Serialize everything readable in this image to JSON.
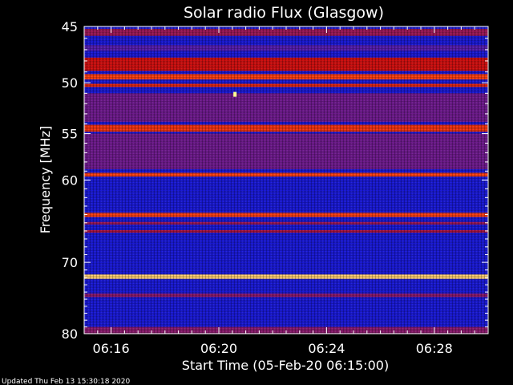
{
  "chart_data": {
    "type": "heatmap",
    "title": "Solar radio Flux (Glasgow)",
    "xlabel": "Start Time (05-Feb-20 06:15:00)",
    "ylabel": "Frequency [MHz]",
    "x_range_minutes_after_0615": [
      0,
      15
    ],
    "y_range_mhz": [
      45,
      80
    ],
    "y_ticks": [
      {
        "value": 45,
        "label": "45"
      },
      {
        "value": 50,
        "label": "50"
      },
      {
        "value": 55,
        "label": "55"
      },
      {
        "value": 60,
        "label": "60"
      },
      {
        "value": 70,
        "label": "70"
      },
      {
        "value": 80,
        "label": "80"
      }
    ],
    "x_ticks": [
      {
        "value": 1,
        "label": "06:16"
      },
      {
        "value": 5,
        "label": "06:20"
      },
      {
        "value": 9,
        "label": "06:24"
      },
      {
        "value": 13,
        "label": "06:28"
      }
    ],
    "colormap": [
      "#0a0a7a",
      "#1f1ff0",
      "#8b1a6e",
      "#d21010",
      "#ff4010",
      "#ffff90"
    ],
    "background_color": "#1a1ad8",
    "bands": [
      {
        "from": 45.2,
        "to": 45.8,
        "intensity": 0.45
      },
      {
        "from": 46.6,
        "to": 47.1,
        "intensity": 0.3
      },
      {
        "from": 47.7,
        "to": 48.9,
        "intensity": 0.6
      },
      {
        "from": 49.2,
        "to": 49.7,
        "intensity": 0.8
      },
      {
        "from": 50.1,
        "to": 50.4,
        "intensity": 0.7
      },
      {
        "from": 51.0,
        "to": 53.8,
        "intensity": 0.35
      },
      {
        "from": 54.1,
        "to": 54.8,
        "intensity": 0.75
      },
      {
        "from": 55.0,
        "to": 58.8,
        "intensity": 0.35
      },
      {
        "from": 59.2,
        "to": 59.6,
        "intensity": 0.8
      },
      {
        "from": 63.8,
        "to": 64.3,
        "intensity": 0.8
      },
      {
        "from": 64.9,
        "to": 65.2,
        "intensity": 0.45
      },
      {
        "from": 65.9,
        "to": 66.2,
        "intensity": 0.5
      },
      {
        "from": 71.6,
        "to": 72.2,
        "intensity": 0.95
      },
      {
        "from": 74.2,
        "to": 74.7,
        "intensity": 0.4
      },
      {
        "from": 79.0,
        "to": 80.0,
        "intensity": 0.4
      }
    ],
    "burst": {
      "x": 5.6,
      "y": 51.1,
      "intensity": 1.0
    }
  },
  "footer": {
    "updated_text": "Updated Thu Feb 13 15:30:18 2020"
  }
}
